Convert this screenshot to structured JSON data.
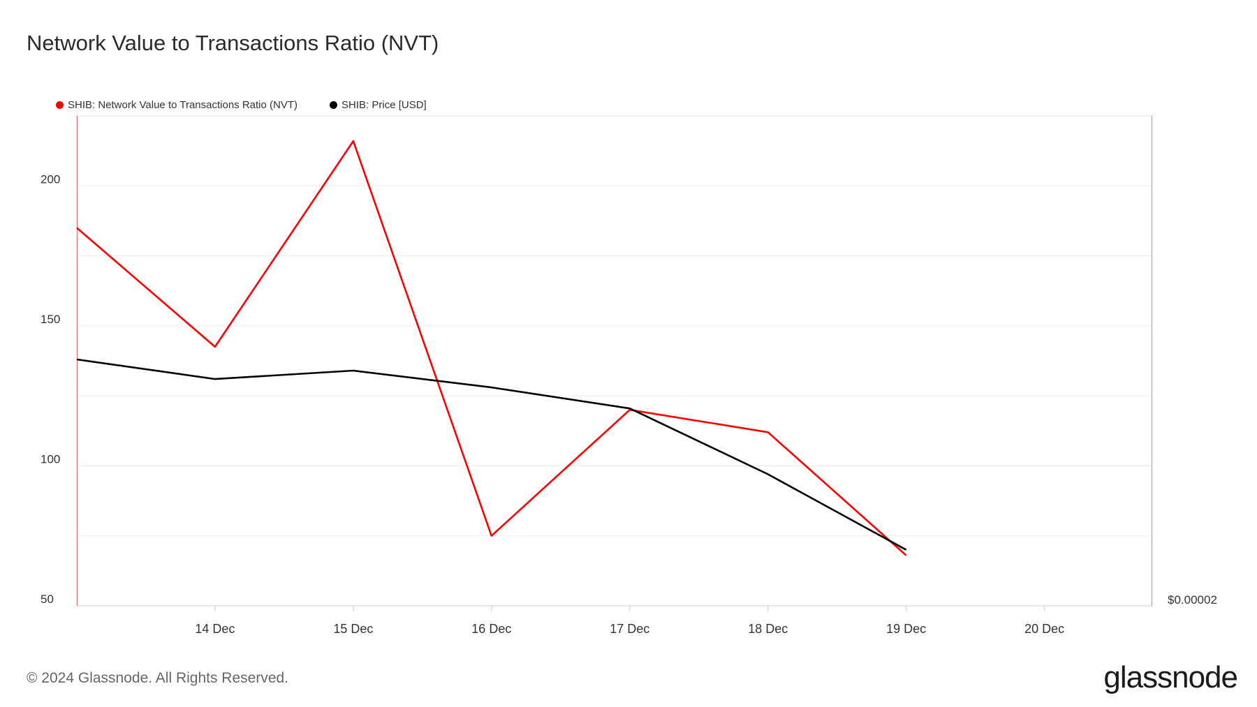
{
  "header": {
    "title": "Network Value to Transactions Ratio (NVT)"
  },
  "legend": {
    "items": [
      {
        "label": "SHIB: Network Value to Transactions Ratio (NVT)",
        "color": "#ff0000"
      },
      {
        "label": "SHIB: Price [USD]",
        "color": "#000000"
      }
    ]
  },
  "footer": {
    "copyright": "© 2024 Glassnode. All Rights Reserved.",
    "brand": "glassnode"
  },
  "chart_data": {
    "type": "line",
    "title": "Network Value to Transactions Ratio (NVT)",
    "x": [
      "13 Dec",
      "14 Dec",
      "15 Dec",
      "16 Dec",
      "17 Dec",
      "18 Dec",
      "19 Dec"
    ],
    "x_ticks": [
      "14 Dec",
      "15 Dec",
      "16 Dec",
      "17 Dec",
      "18 Dec",
      "19 Dec",
      "20 Dec"
    ],
    "xlim": [
      "13 Dec",
      "20.78 Dec"
    ],
    "y_left": {
      "ticks": [
        200,
        150,
        100,
        50
      ],
      "ylim": [
        50,
        225
      ]
    },
    "y_right": {
      "tick_label": "$0.00002"
    },
    "grid": true,
    "legend_position": "top-left",
    "series": [
      {
        "name": "SHIB: Network Value to Transactions Ratio (NVT)",
        "color": "#ff0000",
        "axis": "left",
        "values": [
          185,
          142.5,
          216,
          75,
          120,
          112,
          68
        ]
      },
      {
        "name": "SHIB: Price [USD]",
        "color": "#000000",
        "axis": "right",
        "values": [
          138,
          131,
          134,
          128,
          120.5,
          97,
          70
        ]
      }
    ]
  }
}
